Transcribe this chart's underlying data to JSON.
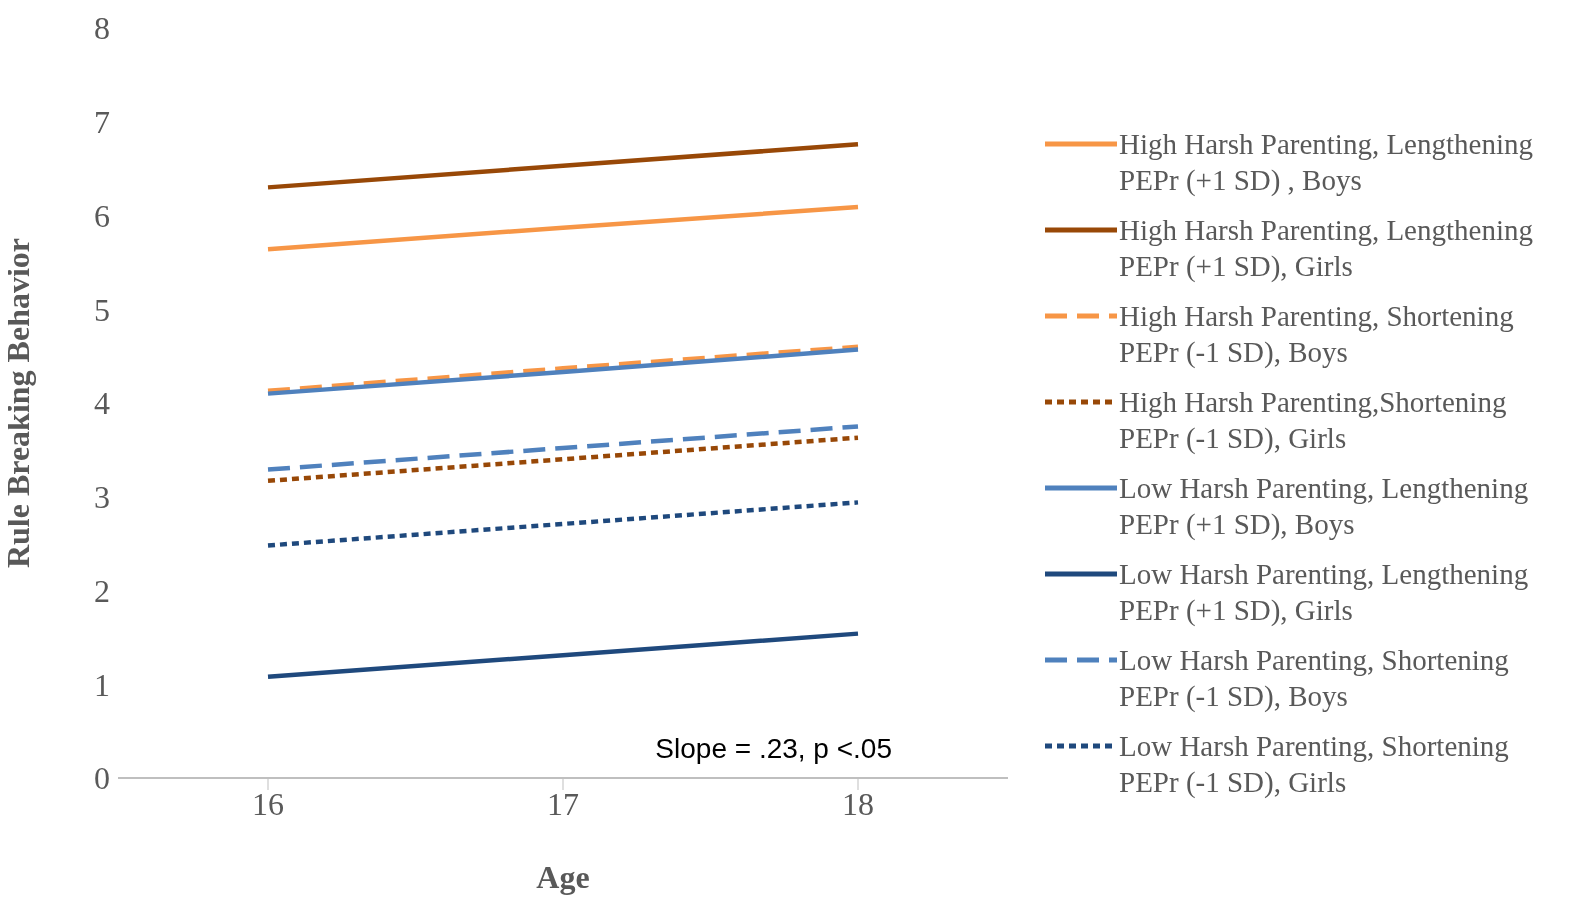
{
  "chart_data": {
    "type": "line",
    "xlabel": "Age",
    "ylabel": "Rule Breaking  Behavior",
    "categories": [
      "16",
      "17",
      "18"
    ],
    "ylim": [
      0,
      8
    ],
    "yticks": [
      0,
      1,
      2,
      3,
      4,
      5,
      6,
      7,
      8
    ],
    "grid": false,
    "legend": "right",
    "marker": "none",
    "annotations": [
      "Slope = .23, p <.05"
    ],
    "series": [
      {
        "name": "High Harsh Parenting, Lengthening PEPr (+1 SD) , Boys",
        "color": "#f79646",
        "line_style": "solid",
        "values": [
          5.64,
          5.87,
          6.09
        ]
      },
      {
        "name": "High Harsh Parenting, Lengthening PEPr (+1 SD), Girls",
        "color": "#984807",
        "line_style": "solid",
        "values": [
          6.3,
          6.53,
          6.76
        ]
      },
      {
        "name": "High Harsh Parenting, Shortening PEPr (-1 SD), Boys",
        "color": "#f79646",
        "line_style": "dashed",
        "values": [
          4.13,
          4.37,
          4.6
        ]
      },
      {
        "name": "High Harsh Parenting,Shortening PEPr (-1 SD), Girls",
        "color": "#984807",
        "line_style": "dotted",
        "values": [
          3.17,
          3.4,
          3.63
        ]
      },
      {
        "name": "Low Harsh Parenting, Lengthening PEPr (+1 SD), Boys",
        "color": "#4f81bd",
        "line_style": "solid",
        "values": [
          4.1,
          4.33,
          4.57
        ]
      },
      {
        "name": "Low Harsh Parenting, Lengthening PEPr (+1 SD), Girls",
        "color": "#1f497d",
        "line_style": "solid",
        "values": [
          1.08,
          1.31,
          1.54
        ]
      },
      {
        "name": "Low Harsh Parenting, Shortening PEPr (-1 SD), Boys",
        "color": "#4f81bd",
        "line_style": "dashed",
        "values": [
          3.29,
          3.52,
          3.75
        ]
      },
      {
        "name": "Low Harsh Parenting, Shortening PEPr (-1 SD), Girls",
        "color": "#1f497d",
        "line_style": "dotted",
        "values": [
          2.48,
          2.71,
          2.94
        ]
      }
    ]
  }
}
